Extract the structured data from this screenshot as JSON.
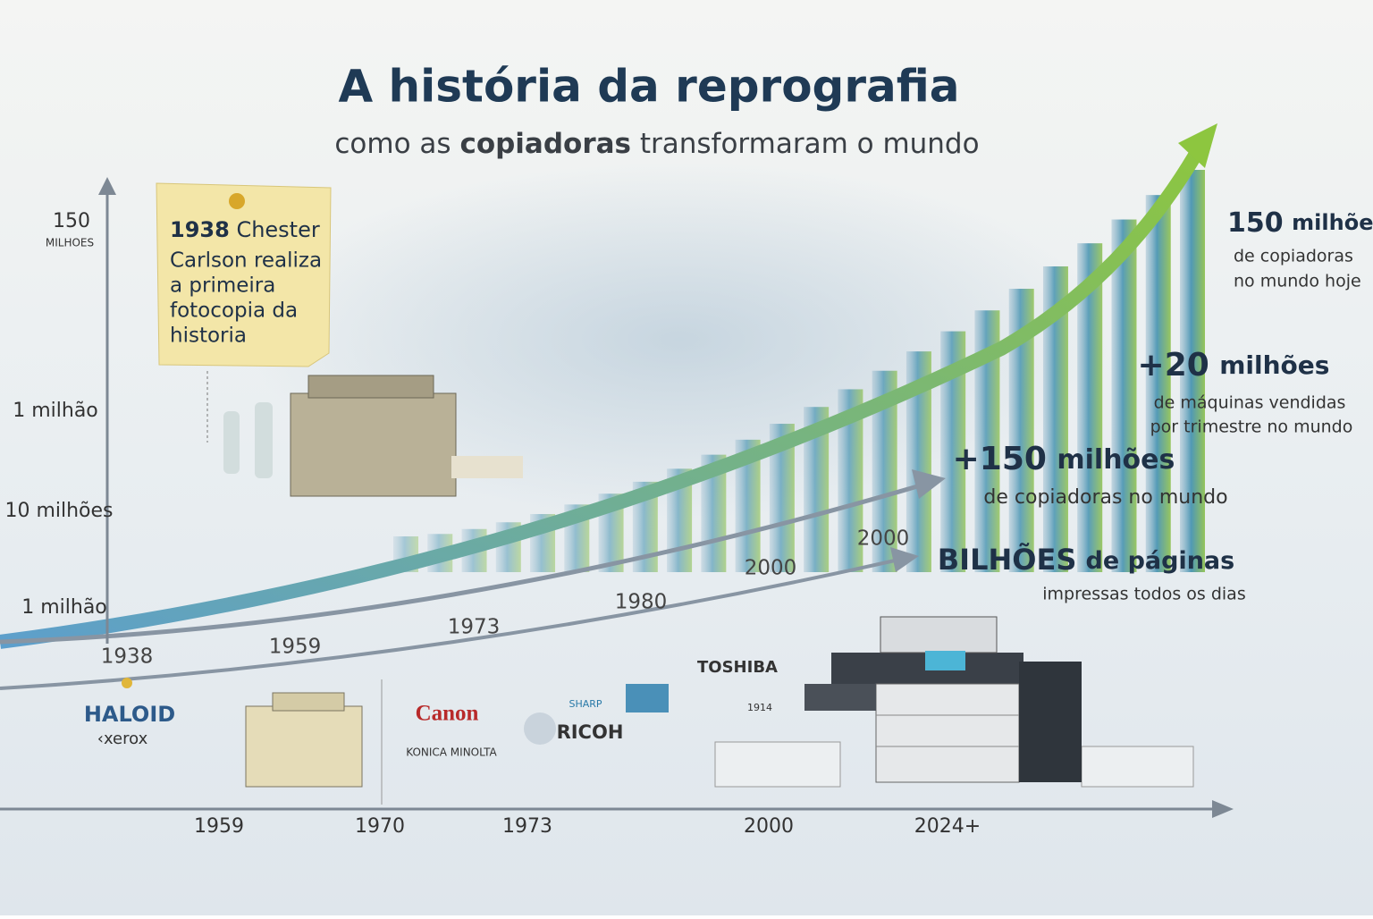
{
  "header": {
    "title": "A história da reprografia",
    "subtitle": [
      "como as",
      "copiadoras",
      "transformaram o mundo"
    ]
  },
  "y_axis_labels": [
    "150",
    "MILHOES",
    "1 milhão",
    "10 milhões",
    "1 milhão"
  ],
  "note": {
    "year": "1938",
    "lines": [
      "Chester",
      "Carlson realiza",
      "a primeira",
      "fotocopia da",
      "historia"
    ]
  },
  "stats": [
    {
      "figure": "150",
      "unit": "milhões",
      "caption": [
        "de copiadoras",
        "no mundo hoje"
      ]
    },
    {
      "figure": "+20",
      "unit": "milhões",
      "caption": [
        "de máquinas vendidas",
        "por trimestre no mundo"
      ]
    },
    {
      "figure": "+150",
      "unit": "milhões",
      "caption": [
        "de copiadoras no mundo"
      ]
    },
    {
      "figure": "BILHÕES",
      "unit": "de páginas",
      "caption": [
        "impressas todos os dias"
      ]
    }
  ],
  "timeline_labels": [
    "1938",
    "1959",
    "1973",
    "1980",
    "2000",
    "2000"
  ],
  "brands": [
    "HALOID",
    "‹xerox",
    "Canon",
    "KONICA MINOLTA",
    "RICOH",
    "SHARP",
    "TOSHIBA",
    "1914"
  ],
  "x_axis_labels": [
    "1959",
    "1970",
    "1973",
    "2000",
    "2024+"
  ]
}
